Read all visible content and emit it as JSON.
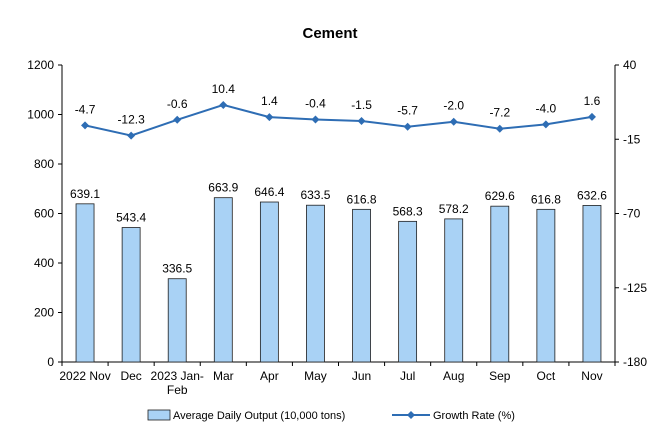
{
  "chart_data": {
    "type": "bar+line",
    "title": "Cement",
    "categories": [
      [
        "2022 Nov"
      ],
      [
        "Dec"
      ],
      [
        "2023 Jan-",
        "Feb"
      ],
      [
        "Mar"
      ],
      [
        "Apr"
      ],
      [
        "May"
      ],
      [
        "Jun"
      ],
      [
        "Jul"
      ],
      [
        "Aug"
      ],
      [
        "Sep"
      ],
      [
        "Oct"
      ],
      [
        "Nov"
      ]
    ],
    "series": [
      {
        "name": "Average Daily Output (10,000 tons)",
        "type": "bar",
        "axis": "left",
        "values": [
          639.1,
          543.4,
          336.5,
          663.9,
          646.4,
          633.5,
          616.8,
          568.3,
          578.2,
          629.6,
          616.8,
          632.6
        ],
        "labels": [
          "639.1",
          "543.4",
          "336.5",
          "663.9",
          "646.4",
          "633.5",
          "616.8",
          "568.3",
          "578.2",
          "629.6",
          "616.8",
          "632.6"
        ]
      },
      {
        "name": "Growth Rate (%)",
        "type": "line",
        "axis": "right",
        "values": [
          -4.7,
          -12.3,
          -0.6,
          10.4,
          1.4,
          -0.4,
          -1.5,
          -5.7,
          -2.0,
          -7.2,
          -4.0,
          1.6
        ],
        "labels": [
          "-4.7",
          "-12.3",
          "-0.6",
          "10.4",
          "1.4",
          "-0.4",
          "-1.5",
          "-5.7",
          "-2.0",
          "-7.2",
          "-4.0",
          "1.6"
        ]
      }
    ],
    "y_left": {
      "min": 0,
      "max": 1200,
      "ticks": [
        "0",
        "200",
        "400",
        "600",
        "800",
        "1000",
        "1200"
      ]
    },
    "y_right": {
      "min": -180,
      "max": 40,
      "ticks": [
        "-180",
        "-125",
        "-70",
        "-15",
        "40"
      ]
    },
    "grid": false,
    "legend": "bottom",
    "colors": {
      "bar_fill": "#a9d2f5",
      "bar_stroke": "#1f1f1f",
      "line": "#2e6db4",
      "marker": "#2e6db4"
    }
  }
}
